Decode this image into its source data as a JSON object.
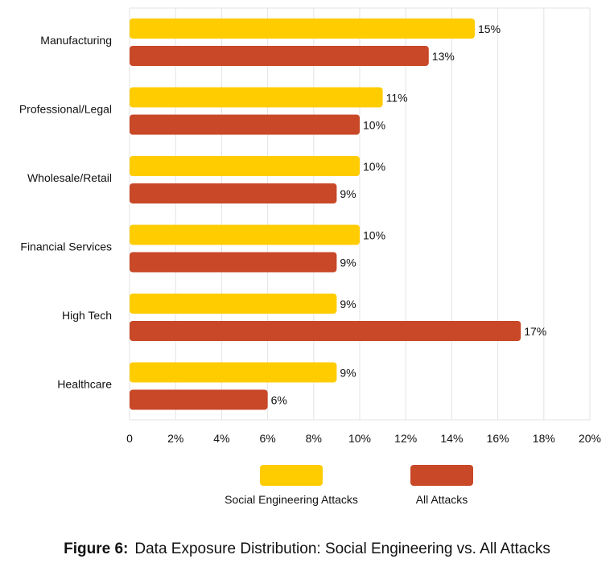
{
  "chart_data": {
    "type": "bar",
    "orientation": "horizontal",
    "categories": [
      "Manufacturing",
      "Professional/Legal",
      "Wholesale/Retail",
      "Financial Services",
      "High Tech",
      "Healthcare"
    ],
    "series": [
      {
        "name": "Social Engineering Attacks",
        "color": "#FFCC00",
        "values": [
          15,
          11,
          10,
          10,
          9,
          9
        ],
        "labels": [
          "15%",
          "11%",
          "10%",
          "10%",
          "9%",
          "9%"
        ]
      },
      {
        "name": "All Attacks",
        "color": "#C84828",
        "values": [
          13,
          10,
          9,
          9,
          17,
          6
        ],
        "labels": [
          "13%",
          "10%",
          "9%",
          "9%",
          "17%",
          "6%"
        ]
      }
    ],
    "xlim": [
      0,
      20
    ],
    "xticks": [
      "0",
      "2%",
      "4%",
      "6%",
      "8%",
      "10%",
      "12%",
      "14%",
      "16%",
      "18%",
      "20%"
    ],
    "grid": true,
    "legend": "bottom",
    "xlabel": "",
    "ylabel": ""
  },
  "caption": {
    "figure_label": "Figure 6:",
    "text": "Data Exposure Distribution: Social Engineering vs. All Attacks"
  }
}
